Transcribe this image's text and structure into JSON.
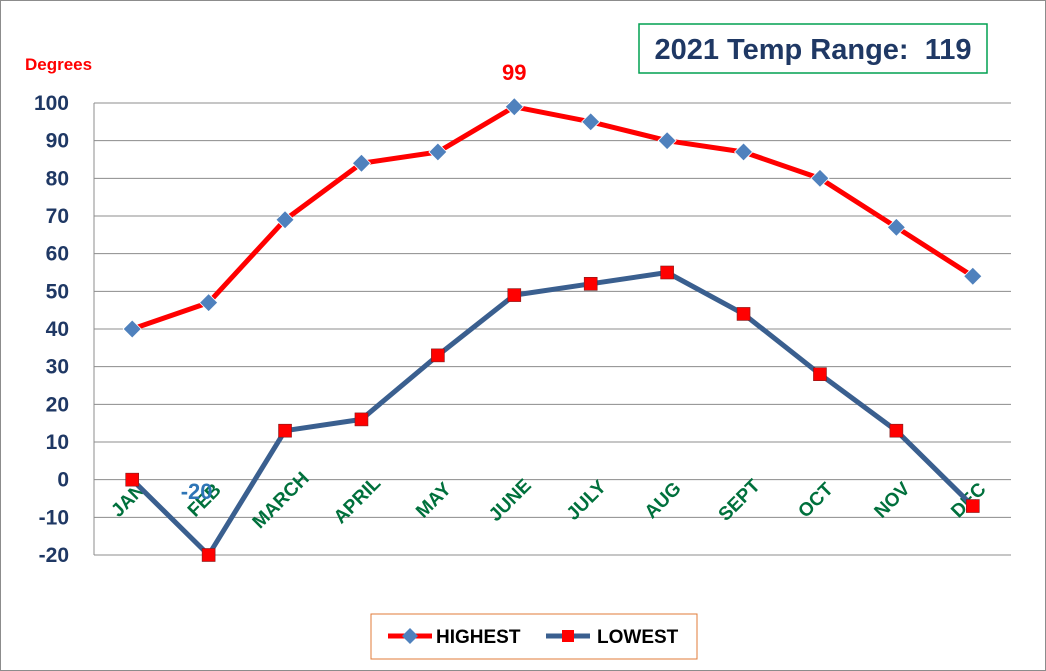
{
  "chart_data": {
    "type": "line",
    "title": "2021 Temp Range:  119",
    "ylabel": "Degrees",
    "xlabel": "",
    "categories": [
      "JAN",
      "FEB",
      "MARCH",
      "APRIL",
      "MAY",
      "JUNE",
      "JULY",
      "AUG",
      "SEPT",
      "OCT",
      "NOV",
      "DEC"
    ],
    "ylim": [
      -20,
      100
    ],
    "yticks": [
      100,
      90,
      80,
      70,
      60,
      50,
      40,
      30,
      20,
      10,
      0,
      -10,
      -20
    ],
    "grid": true,
    "legend_position": "bottom",
    "series": [
      {
        "name": "HIGHEST",
        "values": [
          40,
          47,
          69,
          84,
          87,
          99,
          95,
          90,
          87,
          80,
          67,
          54
        ],
        "line_color": "#ff0000",
        "marker": "diamond",
        "marker_color": "#4f81bd"
      },
      {
        "name": "LOWEST",
        "values": [
          0,
          -20,
          13,
          16,
          33,
          49,
          52,
          55,
          44,
          28,
          13,
          -7
        ],
        "line_color": "#3a5f8f",
        "marker": "square",
        "marker_color": "#ff0000"
      }
    ],
    "annotations": [
      {
        "text": "99",
        "category": "JUNE",
        "series": "HIGHEST",
        "color": "#ff0000"
      },
      {
        "text": "-20",
        "category": "FEB",
        "series": "LOWEST",
        "color": "#2e75b6"
      }
    ]
  }
}
